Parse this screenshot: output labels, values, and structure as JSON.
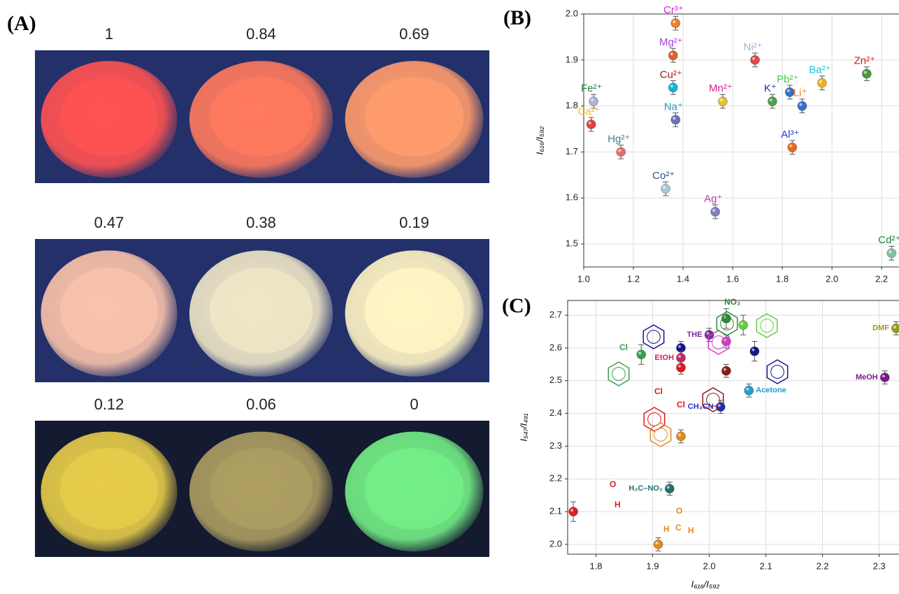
{
  "panel_a": {
    "label": "(A)",
    "samples": [
      {
        "caption": "1",
        "color": "#ff5252"
      },
      {
        "caption": "0.84",
        "color": "#ff7a5e"
      },
      {
        "caption": "0.69",
        "color": "#ff9c6c"
      },
      {
        "caption": "0.47",
        "color": "#f9c2aa"
      },
      {
        "caption": "0.38",
        "color": "#efe6c6"
      },
      {
        "caption": "0.19",
        "color": "#fff4c4"
      },
      {
        "caption": "0.12",
        "color": "#e6cc4a"
      },
      {
        "caption": "0.06",
        "color": "#ad9d62"
      },
      {
        "caption": "0",
        "color": "#74ee86"
      }
    ]
  },
  "chart_data": [
    {
      "type": "scatter",
      "panel_label": "(B)",
      "ylabel": "I₆₁₆/I₅₉₂",
      "x": [
        1.37,
        1.36,
        1.36,
        1.69,
        1.04,
        1.03,
        1.15,
        1.37,
        1.56,
        1.76,
        1.83,
        1.96,
        1.88,
        2.14,
        1.84,
        1.33,
        1.53,
        2.24
      ],
      "y": [
        1.98,
        1.91,
        1.84,
        1.9,
        1.81,
        1.76,
        1.7,
        1.77,
        1.81,
        1.81,
        1.83,
        1.85,
        1.8,
        1.87,
        1.71,
        1.62,
        1.57,
        1.48
      ],
      "errors": [
        0.015,
        0.015,
        0.015,
        0.015,
        0.015,
        0.015,
        0.015,
        0.015,
        0.015,
        0.015,
        0.015,
        0.015,
        0.015,
        0.015,
        0.015,
        0.015,
        0.015,
        0.015
      ],
      "labels": [
        "Cr³⁺",
        "Mg²⁺",
        "Cu²⁺",
        "Ni²⁺",
        "Fe²⁺",
        "Ca²⁺",
        "Hg²⁺",
        "Na⁺",
        "Mn²⁺",
        "K⁺",
        "Pb²⁺",
        "Ba²⁺",
        "Li⁺",
        "Zn²⁺",
        "Al³⁺",
        "Co²⁺",
        "Ag⁺",
        "Cd²⁺"
      ],
      "colors": [
        "#e8862a",
        "#e0602a",
        "#14b4d8",
        "#e04a4a",
        "#b0b0d8",
        "#e04040",
        "#e07070",
        "#7070b8",
        "#e8c030",
        "#50a050",
        "#3a6ec8",
        "#f0b020",
        "#3a6ec8",
        "#4a9a3a",
        "#e86a20",
        "#a8c8d8",
        "#8080c0",
        "#88c0a0"
      ],
      "label_colors": [
        "#e020e0",
        "#a040e0",
        "#a01a1a",
        "#a0b0d8",
        "#208040",
        "#f0c010",
        "#408080",
        "#20a0b0",
        "#e02090",
        "#2030a0",
        "#40d040",
        "#20c0d0",
        "#f08020",
        "#e01010",
        "#2040c0",
        "#3050a0",
        "#c040c0",
        "#208040"
      ],
      "xlim": [
        1.0,
        2.27
      ],
      "ylim": [
        1.45,
        2.0
      ],
      "xticks": [
        {
          "value": 1,
          "label": "1.0"
        },
        1.2,
        1.4,
        1.6,
        1.8,
        {
          "value": 2,
          "label": "2.0"
        },
        2.2
      ],
      "yticks": [
        1.5,
        1.6,
        1.7,
        1.8,
        1.9,
        {
          "value": 2,
          "label": "2.0"
        }
      ],
      "grid": true
    },
    {
      "type": "scatter",
      "panel_label": "(C)",
      "xlabel": "I₆₁₆/I₅₉₂",
      "ylabel": "I₅₄₇/I₄₉₁",
      "x": [
        1.88,
        1.95,
        1.95,
        1.95,
        2.0,
        2.03,
        2.03,
        2.06,
        2.08,
        2.03,
        2.07,
        2.02,
        1.95,
        1.93,
        1.76,
        1.91,
        2.31,
        2.33
      ],
      "y": [
        2.58,
        2.6,
        2.57,
        2.54,
        2.64,
        2.62,
        2.69,
        2.67,
        2.59,
        2.53,
        2.47,
        2.42,
        2.33,
        2.17,
        2.1,
        2.0,
        2.51,
        2.66
      ],
      "errors": [
        0.03,
        0.02,
        0.02,
        0.02,
        0.02,
        0.02,
        0.03,
        0.03,
        0.03,
        0.02,
        0.02,
        0.02,
        0.02,
        0.02,
        0.03,
        0.02,
        0.02,
        0.02
      ],
      "labels": [
        null,
        null,
        "EtOH",
        null,
        "THE",
        null,
        null,
        null,
        null,
        null,
        "Acetone",
        "CH₃CN",
        null,
        "H₃C–NO₂",
        null,
        null,
        "MeOH",
        "DMF"
      ],
      "colors": [
        "#3aa050",
        "#14148a",
        "#d0206a",
        "#e01818",
        "#7a2a9a",
        "#d040c0",
        "#2a8a3a",
        "#60d040",
        "#14148a",
        "#8a1a1a",
        "#20a0d0",
        "#1a30c0",
        "#e08a20",
        "#207070",
        "#e02020",
        "#e08a20",
        "#7a1a8a",
        "#9a9a20"
      ],
      "label_colors": [
        "#3aa050",
        "#14148a",
        "#d0206a",
        "#e01818",
        "#7a2a9a",
        "#d040c0",
        "#2a8a3a",
        "#60d040",
        "#14148a",
        "#8a1a1a",
        "#20a0d0",
        "#1a30c0",
        "#e08a20",
        "#207070",
        "#e02020",
        "#e08a20",
        "#7a1a8a",
        "#9a9a20"
      ],
      "annotations": [
        "Cl",
        "Cl",
        "Cl",
        "NO₂",
        "O",
        "H",
        "O",
        "H",
        "C",
        "H"
      ],
      "xlim": [
        1.75,
        2.335
      ],
      "ylim": [
        1.97,
        2.745
      ],
      "xticks": [
        1.8,
        1.9,
        {
          "value": 2,
          "label": "2.0"
        },
        2.1,
        2.2,
        2.3
      ],
      "yticks": [
        {
          "value": 2,
          "label": "2.0"
        },
        2.1,
        2.2,
        2.3,
        2.4,
        2.5,
        2.6,
        2.7
      ],
      "grid": true
    }
  ]
}
